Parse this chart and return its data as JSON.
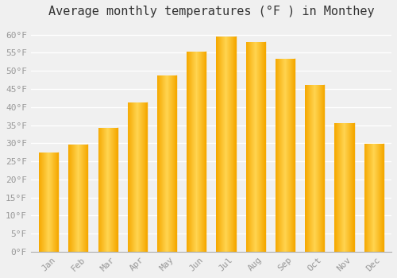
{
  "title": "Average monthly temperatures (°F ) in Monthey",
  "months": [
    "Jan",
    "Feb",
    "Mar",
    "Apr",
    "May",
    "Jun",
    "Jul",
    "Aug",
    "Sep",
    "Oct",
    "Nov",
    "Dec"
  ],
  "values": [
    27.5,
    29.7,
    34.3,
    41.2,
    48.7,
    55.4,
    59.5,
    57.9,
    53.4,
    46.0,
    35.6,
    29.8
  ],
  "bar_color_light": "#FFD060",
  "bar_color_dark": "#F5A800",
  "background_color": "#f0f0f0",
  "plot_bg_color": "#f0f0f0",
  "grid_color": "#ffffff",
  "ylim": [
    0,
    63
  ],
  "yticks": [
    0,
    5,
    10,
    15,
    20,
    25,
    30,
    35,
    40,
    45,
    50,
    55,
    60
  ],
  "title_fontsize": 11,
  "tick_fontsize": 8,
  "tick_label_color": "#999999",
  "font_family": "monospace"
}
